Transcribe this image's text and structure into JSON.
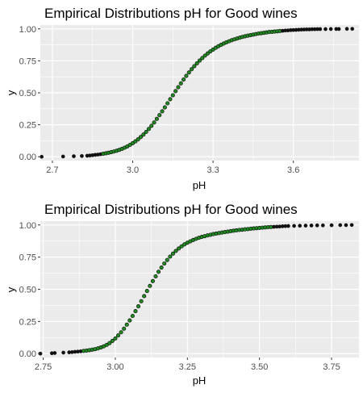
{
  "chart_data": [
    {
      "type": "scatter",
      "title": "Empirical Distributions pH for Good wines",
      "xlabel": "pH",
      "ylabel": "y",
      "xlim": [
        2.655,
        3.845
      ],
      "ylim": [
        -0.03,
        1.03
      ],
      "xticks": [
        2.7,
        3.0,
        3.3,
        3.6
      ],
      "xtick_labels": [
        "2.7",
        "3.0",
        "3.3",
        "3.6"
      ],
      "yticks": [
        0.0,
        0.25,
        0.5,
        0.75,
        1.0
      ],
      "ytick_labels": [
        "0.00",
        "0.25",
        "0.50",
        "0.75",
        "1.00"
      ],
      "grid": true,
      "colors": {
        "panel": "#ebebeb",
        "grid": "#ffffff",
        "point_fill": "#1e8c1e",
        "point_edge": "#111111",
        "point_black": "#111111"
      },
      "x": [
        2.66,
        2.74,
        2.78,
        2.81,
        2.83,
        2.84,
        2.85,
        2.86,
        2.87,
        2.88,
        2.89,
        2.9,
        2.91,
        2.92,
        2.93,
        2.94,
        2.95,
        2.96,
        2.97,
        2.98,
        2.99,
        3.0,
        3.01,
        3.02,
        3.03,
        3.04,
        3.05,
        3.06,
        3.07,
        3.08,
        3.09,
        3.1,
        3.11,
        3.12,
        3.13,
        3.14,
        3.15,
        3.16,
        3.17,
        3.18,
        3.19,
        3.2,
        3.21,
        3.22,
        3.23,
        3.24,
        3.25,
        3.26,
        3.27,
        3.28,
        3.29,
        3.3,
        3.31,
        3.32,
        3.33,
        3.34,
        3.35,
        3.36,
        3.37,
        3.38,
        3.39,
        3.4,
        3.41,
        3.42,
        3.43,
        3.44,
        3.45,
        3.46,
        3.47,
        3.48,
        3.49,
        3.5,
        3.51,
        3.52,
        3.53,
        3.54,
        3.55,
        3.56,
        3.57,
        3.58,
        3.59,
        3.6,
        3.61,
        3.62,
        3.63,
        3.64,
        3.65,
        3.66,
        3.67,
        3.68,
        3.69,
        3.7,
        3.72,
        3.74,
        3.76,
        3.77,
        3.8,
        3.82
      ],
      "y": [
        0.0,
        0.002,
        0.004,
        0.006,
        0.008,
        0.01,
        0.012,
        0.015,
        0.017,
        0.02,
        0.023,
        0.027,
        0.031,
        0.036,
        0.041,
        0.047,
        0.054,
        0.062,
        0.071,
        0.081,
        0.093,
        0.106,
        0.12,
        0.136,
        0.154,
        0.173,
        0.194,
        0.217,
        0.242,
        0.268,
        0.296,
        0.325,
        0.355,
        0.386,
        0.418,
        0.45,
        0.481,
        0.513,
        0.544,
        0.574,
        0.604,
        0.632,
        0.659,
        0.684,
        0.708,
        0.731,
        0.752,
        0.772,
        0.791,
        0.808,
        0.824,
        0.838,
        0.852,
        0.864,
        0.875,
        0.885,
        0.895,
        0.903,
        0.911,
        0.918,
        0.925,
        0.931,
        0.937,
        0.942,
        0.947,
        0.951,
        0.955,
        0.959,
        0.963,
        0.966,
        0.969,
        0.972,
        0.975,
        0.977,
        0.979,
        0.981,
        0.983,
        0.985,
        0.987,
        0.988,
        0.99,
        0.991,
        0.992,
        0.993,
        0.994,
        0.995,
        0.996,
        0.996,
        0.997,
        0.997,
        0.998,
        0.998,
        0.998,
        0.999,
        0.999,
        0.999,
        1.0,
        1.0
      ]
    },
    {
      "type": "scatter",
      "title": "Empirical Distributions pH for Good wines",
      "xlabel": "pH",
      "ylabel": "y",
      "xlim": [
        2.74,
        3.845
      ],
      "ylim": [
        -0.03,
        1.03
      ],
      "xticks": [
        2.75,
        3.0,
        3.25,
        3.5,
        3.75
      ],
      "xtick_labels": [
        "2.75",
        "3.00",
        "3.25",
        "3.50",
        "3.75"
      ],
      "yticks": [
        0.0,
        0.25,
        0.5,
        0.75,
        1.0
      ],
      "ytick_labels": [
        "0.00",
        "0.25",
        "0.50",
        "0.75",
        "1.00"
      ],
      "grid": true,
      "colors": {
        "panel": "#ebebeb",
        "grid": "#ffffff",
        "point_fill": "#1e8c1e",
        "point_edge": "#111111",
        "point_black": "#111111"
      },
      "x": [
        2.74,
        2.78,
        2.79,
        2.82,
        2.84,
        2.85,
        2.86,
        2.87,
        2.88,
        2.89,
        2.9,
        2.91,
        2.92,
        2.93,
        2.94,
        2.95,
        2.96,
        2.97,
        2.98,
        2.99,
        3.0,
        3.01,
        3.02,
        3.03,
        3.04,
        3.05,
        3.06,
        3.07,
        3.08,
        3.09,
        3.1,
        3.11,
        3.12,
        3.13,
        3.14,
        3.15,
        3.16,
        3.17,
        3.18,
        3.19,
        3.2,
        3.21,
        3.22,
        3.23,
        3.24,
        3.25,
        3.26,
        3.27,
        3.28,
        3.29,
        3.3,
        3.31,
        3.32,
        3.33,
        3.34,
        3.35,
        3.36,
        3.37,
        3.38,
        3.39,
        3.4,
        3.41,
        3.42,
        3.43,
        3.44,
        3.45,
        3.46,
        3.47,
        3.48,
        3.49,
        3.5,
        3.51,
        3.52,
        3.53,
        3.54,
        3.55,
        3.56,
        3.57,
        3.58,
        3.59,
        3.6,
        3.62,
        3.64,
        3.66,
        3.68,
        3.7,
        3.72,
        3.75,
        3.78,
        3.8,
        3.82
      ],
      "y": [
        0.0,
        0.003,
        0.005,
        0.008,
        0.01,
        0.012,
        0.014,
        0.016,
        0.018,
        0.021,
        0.024,
        0.027,
        0.031,
        0.035,
        0.041,
        0.048,
        0.057,
        0.068,
        0.082,
        0.099,
        0.118,
        0.141,
        0.166,
        0.194,
        0.225,
        0.258,
        0.293,
        0.33,
        0.368,
        0.407,
        0.447,
        0.487,
        0.526,
        0.564,
        0.601,
        0.636,
        0.669,
        0.7,
        0.728,
        0.754,
        0.777,
        0.798,
        0.817,
        0.834,
        0.849,
        0.862,
        0.873,
        0.883,
        0.892,
        0.9,
        0.907,
        0.913,
        0.919,
        0.924,
        0.929,
        0.933,
        0.937,
        0.941,
        0.945,
        0.948,
        0.952,
        0.955,
        0.958,
        0.961,
        0.963,
        0.966,
        0.968,
        0.971,
        0.973,
        0.975,
        0.977,
        0.979,
        0.981,
        0.983,
        0.984,
        0.986,
        0.987,
        0.988,
        0.99,
        0.991,
        0.992,
        0.993,
        0.994,
        0.995,
        0.996,
        0.997,
        0.997,
        0.998,
        0.999,
        0.999,
        1.0
      ]
    }
  ]
}
